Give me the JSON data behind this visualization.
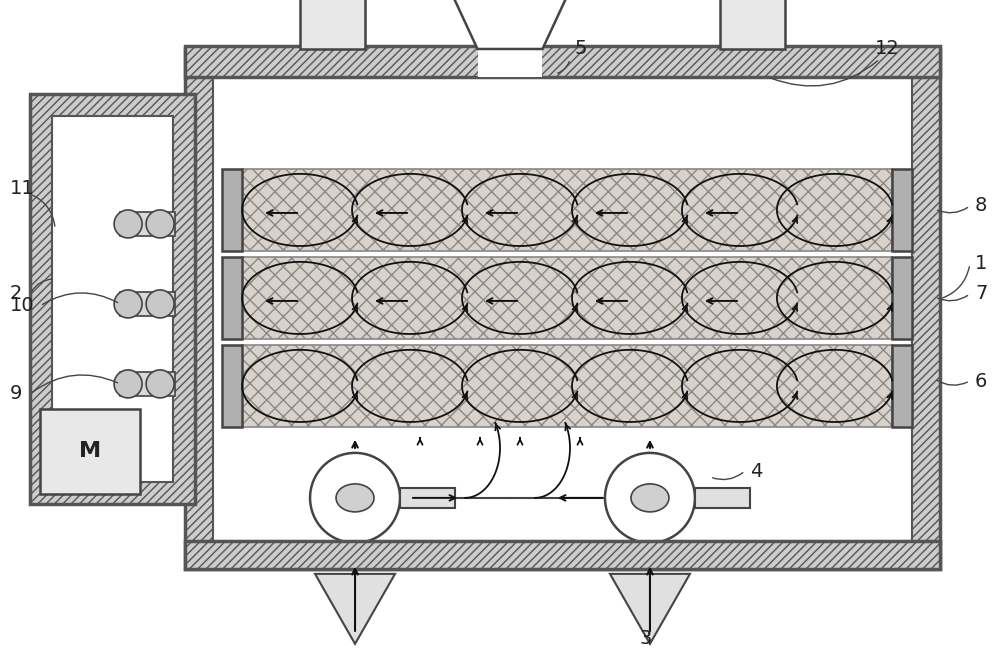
{
  "bg_color": "#ffffff",
  "wall_fc": "#cccccc",
  "wall_ec": "#555555",
  "bed_fc": "#d8d2ca",
  "bed_ec": "#666666",
  "cap_fc": "#b8b8b8",
  "white": "#ffffff",
  "light_gray": "#e8e8e8",
  "arrow_color": "#111111",
  "label_color": "#222222",
  "line_color": "#444444"
}
